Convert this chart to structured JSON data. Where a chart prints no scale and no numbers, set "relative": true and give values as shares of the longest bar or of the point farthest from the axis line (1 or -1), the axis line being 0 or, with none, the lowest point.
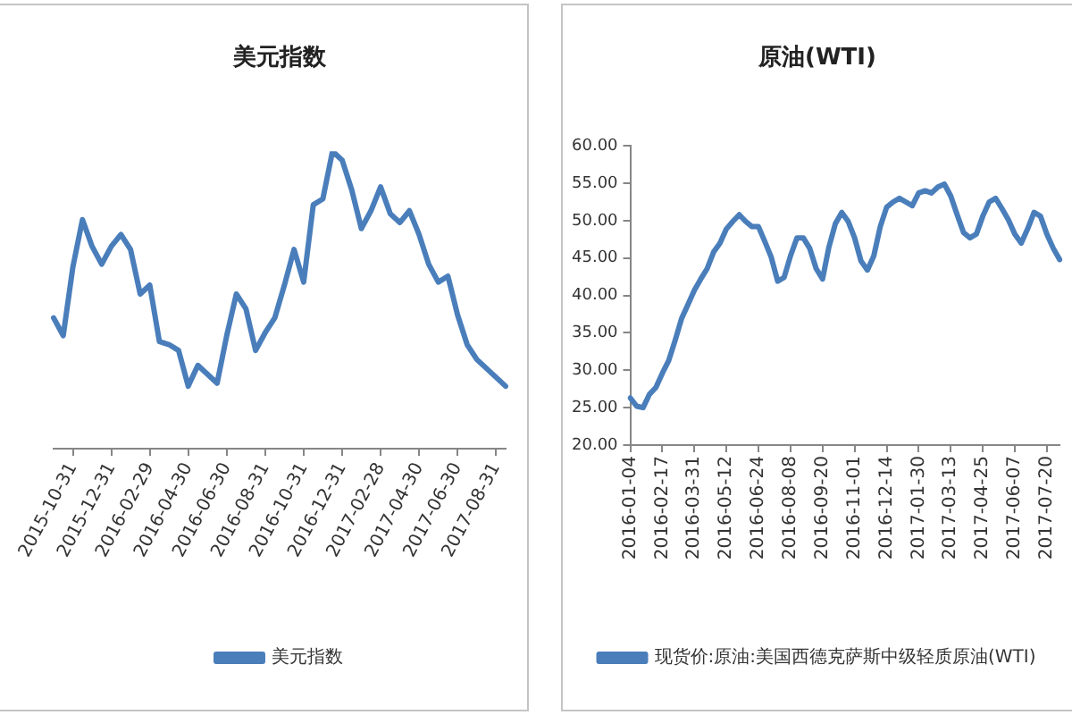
{
  "chart_data": [
    {
      "type": "line",
      "title": "美元指数",
      "relative": true,
      "legend": "bottom",
      "tick_labels": "x",
      "categories": [
        null,
        null,
        "2015-10-31",
        null,
        null,
        null,
        "2015-12-31",
        null,
        null,
        null,
        "2016-02-29",
        null,
        null,
        null,
        "2016-04-30",
        null,
        null,
        null,
        "2016-06-30",
        null,
        null,
        null,
        "2016-08-31",
        null,
        null,
        null,
        "2016-10-31",
        null,
        null,
        null,
        "2016-12-31",
        null,
        null,
        null,
        "2017-02-28",
        null,
        null,
        null,
        "2017-04-30",
        null,
        null,
        null,
        "2017-06-30",
        null,
        null,
        null,
        "2017-08-31",
        null
      ],
      "series": [
        {
          "name": "美元指数",
          "color": "#4a7ebb",
          "values": [
            0.44,
            0.38,
            0.61,
            0.77,
            0.68,
            0.62,
            0.68,
            0.72,
            0.67,
            0.52,
            0.55,
            0.36,
            0.35,
            0.33,
            0.21,
            0.28,
            0.25,
            0.22,
            0.38,
            0.52,
            0.47,
            0.33,
            0.39,
            0.44,
            0.55,
            0.67,
            0.56,
            0.82,
            0.84,
            1,
            0.97,
            0.87,
            0.74,
            0.8,
            0.88,
            0.79,
            0.76,
            0.8,
            0.72,
            0.62,
            0.56,
            0.58,
            0.45,
            0.35,
            0.3,
            0.27,
            0.24,
            0.21
          ]
        }
      ]
    },
    {
      "type": "line",
      "title": "原油(WTI)",
      "legend": "bottom",
      "ylim": [
        20,
        60
      ],
      "yticks": [
        {
          "value": 20,
          "label": "20.00"
        },
        {
          "value": 25,
          "label": "25.00"
        },
        {
          "value": 30,
          "label": "30.00"
        },
        {
          "value": 35,
          "label": "35.00"
        },
        {
          "value": 40,
          "label": "40.00"
        },
        {
          "value": 45,
          "label": "45.00"
        },
        {
          "value": 50,
          "label": "50.00"
        },
        {
          "value": 55,
          "label": "55.00"
        },
        {
          "value": 60,
          "label": "60.00"
        }
      ],
      "categories": [
        "2016-01-04",
        null,
        null,
        null,
        null,
        "2016-02-17",
        null,
        null,
        null,
        null,
        "2016-03-31",
        null,
        null,
        null,
        null,
        "2016-05-12",
        null,
        null,
        null,
        null,
        "2016-06-24",
        null,
        null,
        null,
        null,
        "2016-08-08",
        null,
        null,
        null,
        null,
        "2016-09-20",
        null,
        null,
        null,
        null,
        "2016-11-01",
        null,
        null,
        null,
        null,
        "2016-12-14",
        null,
        null,
        null,
        null,
        "2017-01-30",
        null,
        null,
        null,
        null,
        "2017-03-13",
        null,
        null,
        null,
        null,
        "2017-04-25",
        null,
        null,
        null,
        null,
        "2017-06-07",
        null,
        null,
        null,
        null,
        "2017-07-20",
        null,
        null
      ],
      "series": [
        {
          "name": "现货价:原油:美国西德克萨斯中级轻质原油(WTI)",
          "color": "#4a7ebb",
          "values": [
            26.3,
            25.2,
            25.0,
            26.8,
            27.7,
            29.6,
            31.3,
            34.0,
            36.9,
            38.8,
            40.7,
            42.2,
            43.6,
            45.8,
            47.0,
            48.9,
            49.9,
            50.8,
            49.9,
            49.2,
            49.2,
            47.2,
            45.1,
            41.9,
            42.4,
            45.3,
            47.7,
            47.7,
            46.3,
            43.6,
            42.2,
            46.5,
            49.6,
            51.1,
            49.9,
            47.7,
            44.6,
            43.4,
            45.3,
            49.2,
            51.8,
            52.5,
            53.0,
            52.5,
            52.0,
            53.7,
            54.0,
            53.7,
            54.5,
            54.9,
            53.3,
            50.8,
            48.4,
            47.7,
            48.2,
            50.6,
            52.5,
            53.0,
            51.6,
            50.1,
            48.2,
            47.0,
            48.9,
            51.1,
            50.6,
            48.2,
            46.3,
            44.8
          ]
        }
      ]
    }
  ]
}
